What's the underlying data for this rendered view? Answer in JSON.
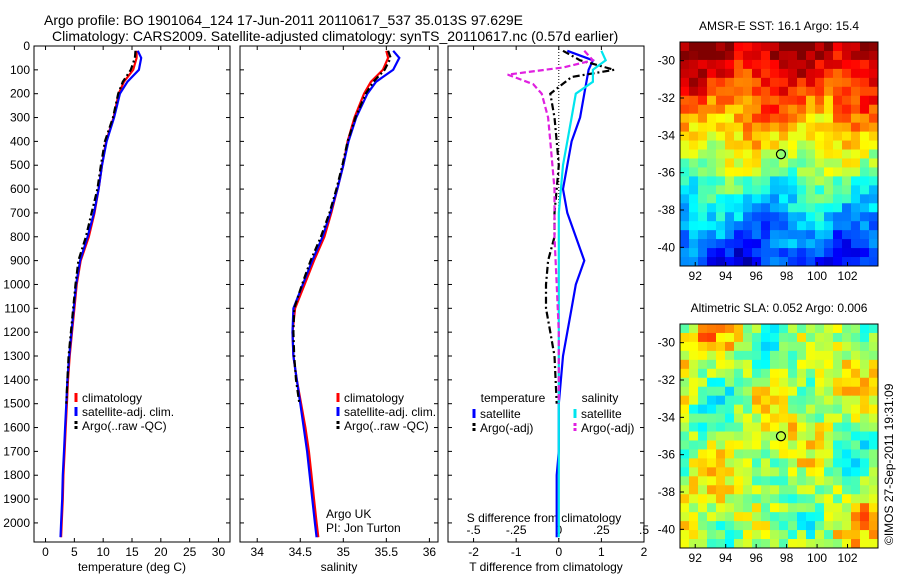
{
  "title": {
    "line1": "Argo profile: BO 1901064_124 17-Jun-2011 20110617_537 35.013S 97.629E",
    "line2": "Climatology: CARS2009. Satellite-adjusted climatology: synTS_20110617.nc (0.57d earlier)"
  },
  "stamp": "©IMOS 27-Sep-2011 19:31:09",
  "chart_data": [
    {
      "type": "line",
      "id": "temperature",
      "xlabel": "temperature (deg C)",
      "ylabel": "",
      "xlim": [
        -2,
        32
      ],
      "ylim": [
        2080,
        0
      ],
      "xticks": [
        0,
        5,
        10,
        15,
        20,
        25,
        30
      ],
      "yticks": [
        0,
        100,
        200,
        300,
        400,
        500,
        600,
        700,
        800,
        900,
        1000,
        1100,
        1200,
        1300,
        1400,
        1500,
        1600,
        1700,
        1800,
        1900,
        2000
      ],
      "legend": [
        "climatology",
        "satellite-adj. clim.",
        "Argo(..raw -QC)"
      ],
      "colors": [
        "#ff0000",
        "#0000ff",
        "#000000"
      ],
      "series": [
        {
          "name": "climatology",
          "style": "solid",
          "color": "#ff0000",
          "x": [
            15.8,
            15.8,
            15.2,
            13.6,
            12.7,
            11.8,
            10.5,
            9.8,
            9.2,
            8.5,
            7.5,
            6.1,
            5.4,
            5.0,
            4.6,
            4.2,
            3.9,
            3.7,
            3.5,
            3.3,
            3.1,
            3.0,
            2.8,
            2.7
          ],
          "y": [
            20,
            50,
            100,
            150,
            200,
            300,
            400,
            500,
            600,
            700,
            800,
            900,
            1000,
            1100,
            1200,
            1300,
            1400,
            1500,
            1600,
            1700,
            1800,
            1900,
            2000,
            2060
          ]
        },
        {
          "name": "satellite-adj. clim.",
          "style": "solid",
          "color": "#0000ff",
          "x": [
            16.0,
            16.6,
            16.2,
            14.2,
            12.9,
            11.9,
            10.6,
            9.8,
            9.2,
            8.4,
            7.3,
            6.0,
            5.3,
            4.9,
            4.5,
            4.1,
            3.8,
            3.6,
            3.4,
            3.2,
            3.0,
            2.9,
            2.7,
            2.6
          ],
          "y": [
            20,
            50,
            100,
            150,
            200,
            300,
            400,
            500,
            600,
            700,
            800,
            900,
            1000,
            1100,
            1200,
            1300,
            1400,
            1500,
            1600,
            1700,
            1800,
            1900,
            2000,
            2060
          ]
        },
        {
          "name": "Argo(..raw -QC)",
          "style": "dashdot",
          "color": "#000000",
          "x": [
            15.6,
            15.5,
            14.8,
            13.4,
            12.6,
            11.7,
            10.3,
            9.6,
            9.0,
            8.0,
            7.0,
            5.7,
            5.2,
            4.8,
            4.4,
            4.0,
            3.8,
            3.6
          ],
          "y": [
            20,
            50,
            100,
            150,
            200,
            300,
            400,
            500,
            600,
            700,
            800,
            900,
            1000,
            1100,
            1200,
            1300,
            1400,
            1500
          ]
        }
      ]
    },
    {
      "type": "line",
      "id": "salinity",
      "xlabel": "salinity",
      "ylabel": "",
      "xlim": [
        33.8,
        36.1
      ],
      "ylim": [
        2080,
        0
      ],
      "xticks": [
        34,
        34.5,
        35,
        35.5,
        36
      ],
      "legend": [
        "climatology",
        "satellite-adj. clim.",
        "Argo(..raw -QC)"
      ],
      "colors": [
        "#ff0000",
        "#0000ff",
        "#000000"
      ],
      "annotation": [
        "Argo UK",
        "PI: Jon Turton"
      ],
      "series": [
        {
          "name": "climatology",
          "style": "solid",
          "color": "#ff0000",
          "x": [
            35.5,
            35.52,
            35.46,
            35.32,
            35.24,
            35.13,
            35.05,
            35.0,
            34.93,
            34.86,
            34.78,
            34.66,
            34.55,
            34.44,
            34.41,
            34.42,
            34.46,
            34.51,
            34.56,
            34.6,
            34.63,
            34.66,
            34.69,
            34.71
          ],
          "y": [
            20,
            50,
            100,
            150,
            200,
            300,
            400,
            500,
            600,
            700,
            800,
            900,
            1000,
            1100,
            1200,
            1300,
            1400,
            1500,
            1600,
            1700,
            1800,
            1900,
            2000,
            2060
          ]
        },
        {
          "name": "satellite-adj. clim.",
          "style": "solid",
          "color": "#0000ff",
          "x": [
            35.58,
            35.65,
            35.58,
            35.38,
            35.28,
            35.15,
            35.06,
            35.0,
            34.93,
            34.85,
            34.76,
            34.64,
            34.53,
            34.42,
            34.41,
            34.42,
            34.46,
            34.5,
            34.54,
            34.58,
            34.61,
            34.64,
            34.67,
            34.69
          ],
          "y": [
            20,
            50,
            100,
            150,
            200,
            300,
            400,
            500,
            600,
            700,
            800,
            900,
            1000,
            1100,
            1200,
            1300,
            1400,
            1500,
            1600,
            1700,
            1800,
            1900,
            2000,
            2060
          ]
        },
        {
          "name": "Argo(..raw -QC)",
          "style": "dashdot",
          "color": "#000000",
          "x": [
            35.52,
            35.55,
            35.48,
            35.35,
            35.26,
            35.14,
            35.05,
            34.99,
            34.92,
            34.84,
            34.74,
            34.62,
            34.52,
            34.43,
            34.42,
            34.43,
            34.45,
            34.49
          ],
          "y": [
            20,
            50,
            100,
            150,
            200,
            300,
            400,
            500,
            600,
            700,
            800,
            900,
            1000,
            1100,
            1200,
            1300,
            1400,
            1500
          ]
        }
      ]
    },
    {
      "type": "line",
      "id": "difference",
      "xlabel": "T difference from climatology",
      "xlabel_top": "S difference from climatology",
      "xlim": [
        -2.6,
        2.0
      ],
      "ylim": [
        2080,
        0
      ],
      "xticks": [
        -2,
        -1,
        0,
        1,
        2
      ],
      "xticks_top": [
        -0.5,
        -0.25,
        0,
        0.25,
        0.5
      ],
      "legend_groups": [
        "temperature",
        "salinity"
      ],
      "legend": [
        "satellite",
        "Argo(-adj)",
        "satellite",
        "Argo(-adj)"
      ],
      "colors": [
        "#0000ff",
        "#000000",
        "#00e5ee",
        "#e020e0"
      ],
      "series": [
        {
          "name": "satellite",
          "group": "temperature",
          "style": "solid",
          "color": "#0000ff",
          "x": [
            0.2,
            0.8,
            0.7,
            0.6,
            0.5,
            0.3,
            0.2,
            0.1,
            0.2,
            0.4,
            0.6,
            0.5,
            0.4,
            0.3,
            0.2,
            0.1,
            0.05,
            0.0,
            0.0,
            0.0,
            -0.05,
            -0.05,
            -0.05
          ],
          "y": [
            20,
            60,
            100,
            200,
            300,
            400,
            500,
            600,
            700,
            800,
            900,
            950,
            1000,
            1100,
            1200,
            1300,
            1400,
            1500,
            1600,
            1700,
            1800,
            1900,
            2060
          ]
        },
        {
          "name": "Argo(-adj)",
          "group": "temperature",
          "style": "dashdot",
          "color": "#000000",
          "x": [
            0.1,
            0.5,
            1.3,
            0.3,
            -0.2,
            -0.1,
            -0.05,
            0.0,
            -0.05,
            -0.1,
            -0.1,
            -0.25,
            -0.3,
            -0.3,
            -0.2,
            -0.1,
            -0.05
          ],
          "y": [
            20,
            60,
            100,
            130,
            200,
            300,
            400,
            500,
            600,
            700,
            800,
            900,
            1000,
            1100,
            1200,
            1300,
            1500
          ]
        },
        {
          "name": "satellite",
          "group": "salinity",
          "style": "solid",
          "color": "#00e5ee",
          "x": [
            1.0,
            1.1,
            0.8,
            0.8,
            0.4,
            0.3,
            0.2,
            0.1,
            0.05,
            0.0,
            0.0,
            0.0,
            0.0,
            0.0,
            0.0,
            0.0,
            0.0,
            0.0,
            0.0,
            0.0,
            0.0
          ],
          "y": [
            20,
            60,
            100,
            150,
            200,
            300,
            400,
            500,
            600,
            700,
            800,
            900,
            1000,
            1200,
            1400,
            1500,
            1600,
            1700,
            1800,
            1900,
            2060
          ]
        },
        {
          "name": "Argo(-adj)",
          "group": "salinity",
          "style": "dashed",
          "color": "#e020e0",
          "x": [
            0.6,
            0.8,
            0.1,
            -1.2,
            -0.6,
            -0.4,
            -0.25,
            -0.2,
            -0.15,
            -0.1,
            -0.1,
            -0.05,
            0.0,
            0.0
          ],
          "y": [
            20,
            60,
            90,
            120,
            160,
            200,
            300,
            400,
            500,
            600,
            800,
            1000,
            1200,
            1500
          ]
        }
      ]
    },
    {
      "type": "heatmap",
      "id": "sst-map",
      "title": "AMSR-E SST: 16.1 Argo: 15.4",
      "xlim": [
        91,
        104
      ],
      "ylim": [
        -41,
        -29
      ],
      "xticks": [
        92,
        94,
        96,
        98,
        100,
        102
      ],
      "yticks": [
        -30,
        -32,
        -34,
        -36,
        -38,
        -40
      ],
      "marker": {
        "lon": 97.629,
        "lat": -35.013
      },
      "colormap": "jet"
    },
    {
      "type": "heatmap",
      "id": "sla-map",
      "title": "Altimetric SLA: 0.052 Argo: 0.006",
      "xlim": [
        91,
        104
      ],
      "ylim": [
        -41,
        -29
      ],
      "xticks": [
        92,
        94,
        96,
        98,
        100,
        102
      ],
      "yticks": [
        -30,
        -32,
        -34,
        -36,
        -38,
        -40
      ],
      "marker": {
        "lon": 97.629,
        "lat": -35.013
      },
      "colormap": "jet"
    }
  ]
}
